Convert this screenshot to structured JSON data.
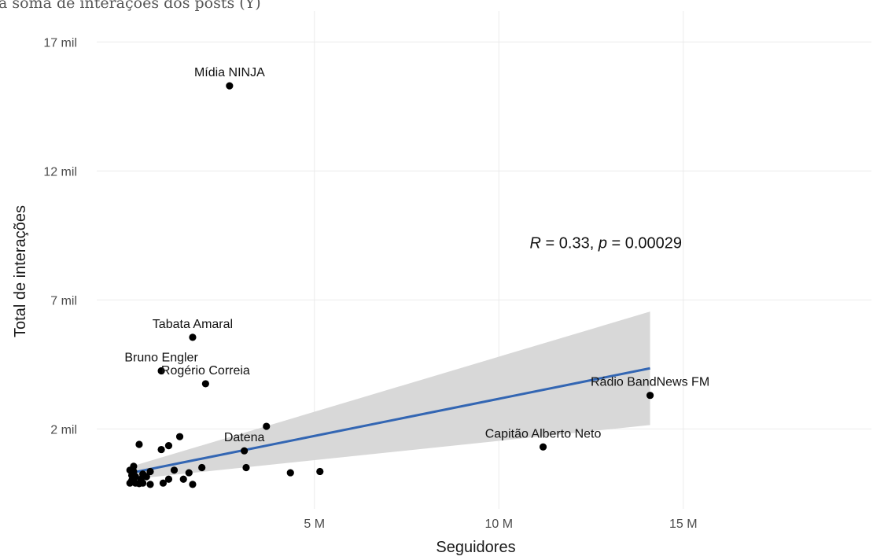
{
  "chart_data": {
    "type": "scatter",
    "subtitle": "a soma de interações dos posts (Y)",
    "xlabel": "Seguidores",
    "ylabel": "Total de interações",
    "xlim": [
      -0.9,
      20.1
    ],
    "ylim": [
      -1.1,
      18.2
    ],
    "x_ticks": [
      {
        "value": 5,
        "label": "5 M"
      },
      {
        "value": 10,
        "label": "10 M"
      },
      {
        "value": 15,
        "label": "15 M"
      }
    ],
    "y_ticks": [
      {
        "value": 2,
        "label": "2 mil"
      },
      {
        "value": 7,
        "label": "7 mil"
      },
      {
        "value": 12,
        "label": "12 mil"
      },
      {
        "value": 17,
        "label": "17 mil"
      }
    ],
    "grid": true,
    "stat_label": {
      "r_symbol": "R",
      "r_value": " = 0.33, ",
      "p_symbol": "p",
      "p_value": " = 0.00029",
      "x": 12.9,
      "y": 9.0
    },
    "regression": {
      "x_start": 0.05,
      "x_end": 14.1,
      "y_start": 0.3,
      "y_end": 4.35,
      "ci_upper_start": 0.55,
      "ci_upper_end": 6.55,
      "ci_lower_start": 0.05,
      "ci_lower_end": 2.15,
      "line_color": "#3366b3",
      "band_color": "#d6d6d6"
    },
    "point_color": "#000000",
    "points": [
      {
        "x": 2.7,
        "y": 15.3,
        "label": "Mídia NINJA"
      },
      {
        "x": 1.7,
        "y": 5.55,
        "label": "Tabata Amaral"
      },
      {
        "x": 0.85,
        "y": 4.25,
        "label": "Bruno Engler"
      },
      {
        "x": 2.05,
        "y": 3.75,
        "label": "Rogério Correia"
      },
      {
        "x": 14.1,
        "y": 3.3,
        "label": "Rádio BandNews FM"
      },
      {
        "x": 11.2,
        "y": 1.3,
        "label": "Capitão Alberto Neto"
      },
      {
        "x": 3.1,
        "y": 1.15,
        "label": "Datena"
      },
      {
        "x": 3.7,
        "y": 2.1
      },
      {
        "x": 3.15,
        "y": 0.5
      },
      {
        "x": 4.35,
        "y": 0.3
      },
      {
        "x": 5.15,
        "y": 0.35
      },
      {
        "x": 0.25,
        "y": 1.4
      },
      {
        "x": 1.35,
        "y": 1.7
      },
      {
        "x": 1.05,
        "y": 1.35
      },
      {
        "x": 0.85,
        "y": 1.2
      },
      {
        "x": 1.95,
        "y": 0.5
      },
      {
        "x": 1.6,
        "y": 0.3
      },
      {
        "x": 1.45,
        "y": 0.05
      },
      {
        "x": 1.7,
        "y": -0.15
      },
      {
        "x": 1.2,
        "y": 0.4
      },
      {
        "x": 1.05,
        "y": 0.05
      },
      {
        "x": 0.9,
        "y": -0.1
      },
      {
        "x": 0.55,
        "y": 0.35
      },
      {
        "x": 0.45,
        "y": 0.15
      },
      {
        "x": 0.35,
        "y": 0.25
      },
      {
        "x": 0.3,
        "y": 0.05
      },
      {
        "x": 0.1,
        "y": 0.55
      },
      {
        "x": 0.1,
        "y": 0.35
      },
      {
        "x": 0.05,
        "y": 0.2
      },
      {
        "x": 0.0,
        "y": -0.1
      },
      {
        "x": 0.15,
        "y": -0.1
      },
      {
        "x": 0.25,
        "y": -0.12
      },
      {
        "x": 0.35,
        "y": -0.1
      },
      {
        "x": 0.55,
        "y": -0.15
      },
      {
        "x": 0.05,
        "y": 0.0
      },
      {
        "x": 0.15,
        "y": 0.15
      },
      {
        "x": 0.0,
        "y": 0.4
      }
    ]
  }
}
